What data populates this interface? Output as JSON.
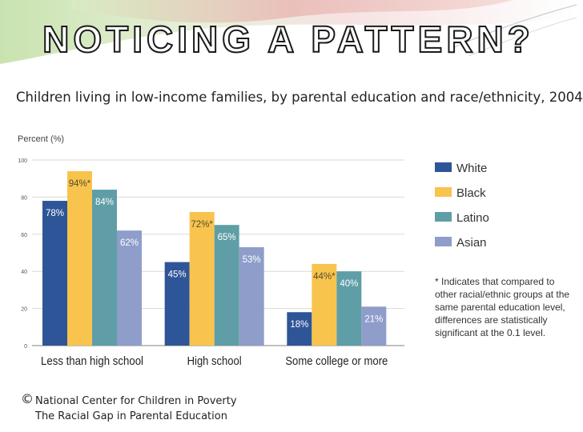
{
  "slide_title": "NOTICING A PATTERN?",
  "chart_data": {
    "type": "bar",
    "title": "Children living in low-income families, by parental education and race/ethnicity, 2004",
    "ylabel": "Percent (%)",
    "xlabel": "",
    "ylim": [
      0,
      100
    ],
    "yticks": [
      "0",
      "20",
      "40",
      "60",
      "80",
      "100"
    ],
    "grid": true,
    "legend_position": "right",
    "categories": [
      "Less than high school",
      "High school",
      "Some college or more"
    ],
    "series": [
      {
        "name": "White",
        "color": "#2e5597",
        "values": [
          78,
          45,
          18
        ],
        "labels": [
          "78%",
          "45%",
          "18%"
        ]
      },
      {
        "name": "Black",
        "color": "#f8c44e",
        "values": [
          94,
          72,
          44
        ],
        "labels": [
          "94%*",
          "72%*",
          "44%*"
        ]
      },
      {
        "name": "Latino",
        "color": "#5f9ea6",
        "values": [
          84,
          65,
          40
        ],
        "labels": [
          "84%",
          "65%",
          "40%"
        ]
      },
      {
        "name": "Asian",
        "color": "#8f9dcb",
        "values": [
          62,
          53,
          21
        ],
        "labels": [
          "62%",
          "53%",
          "21%"
        ]
      }
    ],
    "footnote": "* Indicates that compared to other racial/ethnic groups at the same parental education level, differences are statistically significant at the 0.1 level."
  },
  "credit": {
    "symbol": "©",
    "line1": "National Center for Children in Poverty",
    "line2": "The Racial Gap in Parental Education"
  }
}
